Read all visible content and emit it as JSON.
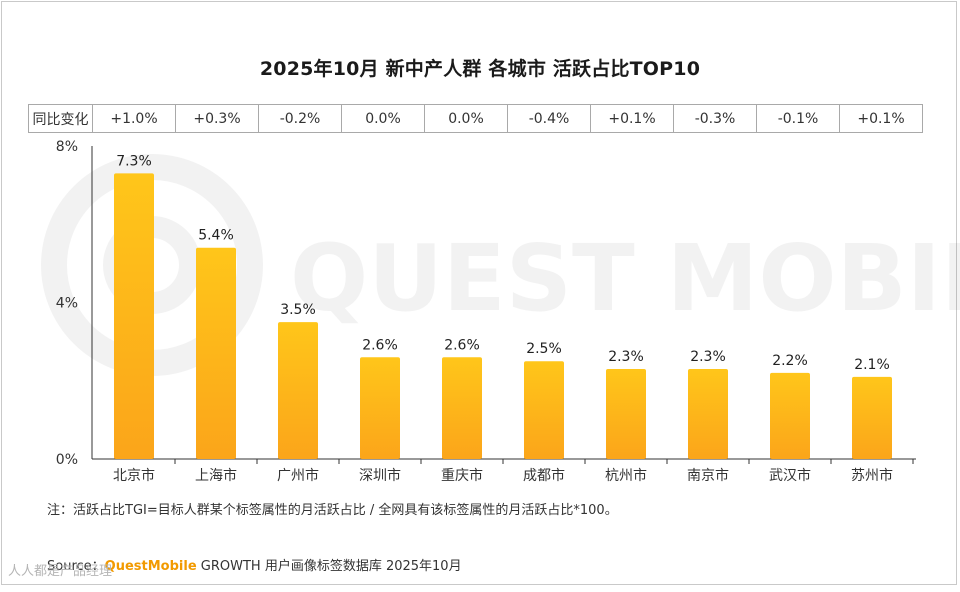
{
  "chart_data": {
    "type": "bar",
    "title": "2025年10月 新中产人群 各城市 活跃占比TOP10",
    "categories": [
      "北京市",
      "上海市",
      "广州市",
      "深圳市",
      "重庆市",
      "成都市",
      "杭州市",
      "南京市",
      "武汉市",
      "苏州市"
    ],
    "values": [
      7.3,
      5.4,
      3.5,
      2.6,
      2.6,
      2.5,
      2.3,
      2.3,
      2.2,
      2.1
    ],
    "value_labels": [
      "7.3%",
      "5.4%",
      "3.5%",
      "2.6%",
      "2.6%",
      "2.5%",
      "2.3%",
      "2.3%",
      "2.2%",
      "2.1%"
    ],
    "ylim": [
      0,
      8
    ],
    "yticks": [
      0,
      4,
      8
    ],
    "ytick_labels": [
      "0%",
      "4%",
      "8%"
    ],
    "xlabel": "",
    "ylabel": "",
    "grid": false,
    "bar_color_top": "#ffc61a",
    "bar_color_bottom": "#fba51a",
    "yoy_header": "同比变化",
    "yoy_values": [
      "+1.0%",
      "+0.3%",
      "-0.2%",
      "0.0%",
      "0.0%",
      "-0.4%",
      "+0.1%",
      "-0.3%",
      "-0.1%",
      "+0.1%"
    ]
  },
  "note": "注：活跃占比TGI=目标人群某个标签属性的月活跃占比 / 全网具有该标签属性的月活跃占比*100。",
  "source": {
    "prefix": "Source：",
    "brand": "QuestMobile",
    "rest": " GROWTH 用户画像标签数据库 2025年10月"
  },
  "watermark": "QUEST MOBILE",
  "corner_logo": "人人都是产品经理"
}
